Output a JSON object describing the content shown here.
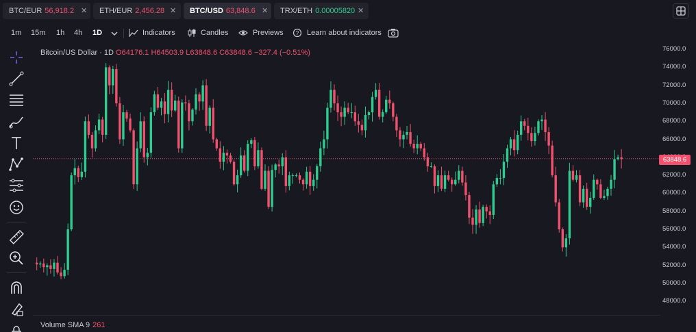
{
  "tickers": [
    {
      "symbol": "BTC/EUR",
      "price": "56,918.2",
      "color": "red",
      "active": false
    },
    {
      "symbol": "ETH/EUR",
      "price": "2,456.28",
      "color": "red",
      "active": false
    },
    {
      "symbol": "BTC/USD",
      "price": "63,848.6",
      "color": "red",
      "active": true
    },
    {
      "symbol": "TRX/ETH",
      "price": "0.00005820",
      "color": "green",
      "active": false
    }
  ],
  "toolbar": {
    "intervals": [
      "1m",
      "15m",
      "1h",
      "4h",
      "1D"
    ],
    "active_interval": "1D",
    "indicators": "Indicators",
    "candles": "Candles",
    "previews": "Previews",
    "learn": "Learn about indicators"
  },
  "legend": {
    "title": "Bitcoin/US Dollar",
    "interval": "1D",
    "open": "O64176.1",
    "high": "H64503.9",
    "low": "L63848.6",
    "close": "C63848.6",
    "change": "−327.4 (−0.51%)"
  },
  "volume": {
    "label": "Volume SMA 9",
    "value": "261"
  },
  "yaxis_ticks": [
    "76000.0",
    "74000.0",
    "72000.0",
    "70000.0",
    "68000.0",
    "66000.0",
    "64000.0",
    "62000.0",
    "60000.0",
    "58000.0",
    "56000.0",
    "54000.0",
    "52000.0",
    "50000.0",
    "48000.0"
  ],
  "current_price": "63848.6",
  "colors": {
    "up": "#2ecc8f",
    "down": "#f0516c",
    "background": "#181820"
  },
  "chart_data": {
    "type": "candlestick",
    "symbol": "BTC/USD",
    "interval": "1D",
    "ylim": [
      46500,
      77000
    ],
    "close": [
      52100,
      52200,
      51800,
      52000,
      51600,
      52300,
      51200,
      50800,
      51500,
      56000,
      62000,
      62800,
      61800,
      62400,
      68000,
      66500,
      65000,
      67000,
      68200,
      66500,
      74000,
      72000,
      73800,
      70000,
      66000,
      69000,
      68300,
      67000,
      61000,
      65000,
      68000,
      64000,
      64500,
      69000,
      71000,
      69500,
      70200,
      68800,
      71500,
      69200,
      70300,
      65000,
      70100,
      70000,
      68000,
      69300,
      71000,
      70200,
      72000,
      67500,
      69500,
      66000,
      65000,
      63500,
      64500,
      64200,
      63500,
      61000,
      62000,
      64200,
      62500,
      65500,
      65900,
      63000,
      64800,
      60500,
      62500,
      58500,
      62600,
      63200,
      63000,
      64000,
      60800,
      62000,
      62000,
      62000,
      61500,
      61000,
      62400,
      60800,
      61500,
      63000,
      65000,
      66000,
      69500,
      71500,
      70000,
      69000,
      68500,
      69500,
      69000,
      69000,
      68000,
      67600,
      67000,
      68700,
      69000,
      70700,
      71500,
      68500,
      69000,
      70400,
      70000,
      68500,
      67000,
      66000,
      66500,
      66800,
      65500,
      65000,
      65500,
      65000,
      64000,
      63000,
      63000,
      60800,
      62000,
      60500,
      62000,
      61500,
      61000,
      61500,
      62500,
      61200,
      59800,
      57300,
      56500,
      58200,
      56700,
      58500,
      58000,
      57600,
      61000,
      61700,
      61700,
      63500,
      65000,
      66000,
      64800,
      66500,
      68000,
      67500,
      66700,
      65800,
      66700,
      68000,
      68200,
      66800,
      65300,
      62000,
      59000,
      56000,
      54000,
      55000,
      62500,
      61500,
      62000,
      59000,
      60500,
      58500,
      59500,
      61500,
      61000,
      59500,
      59700,
      60500,
      61500,
      63800,
      64000,
      63800
    ]
  }
}
